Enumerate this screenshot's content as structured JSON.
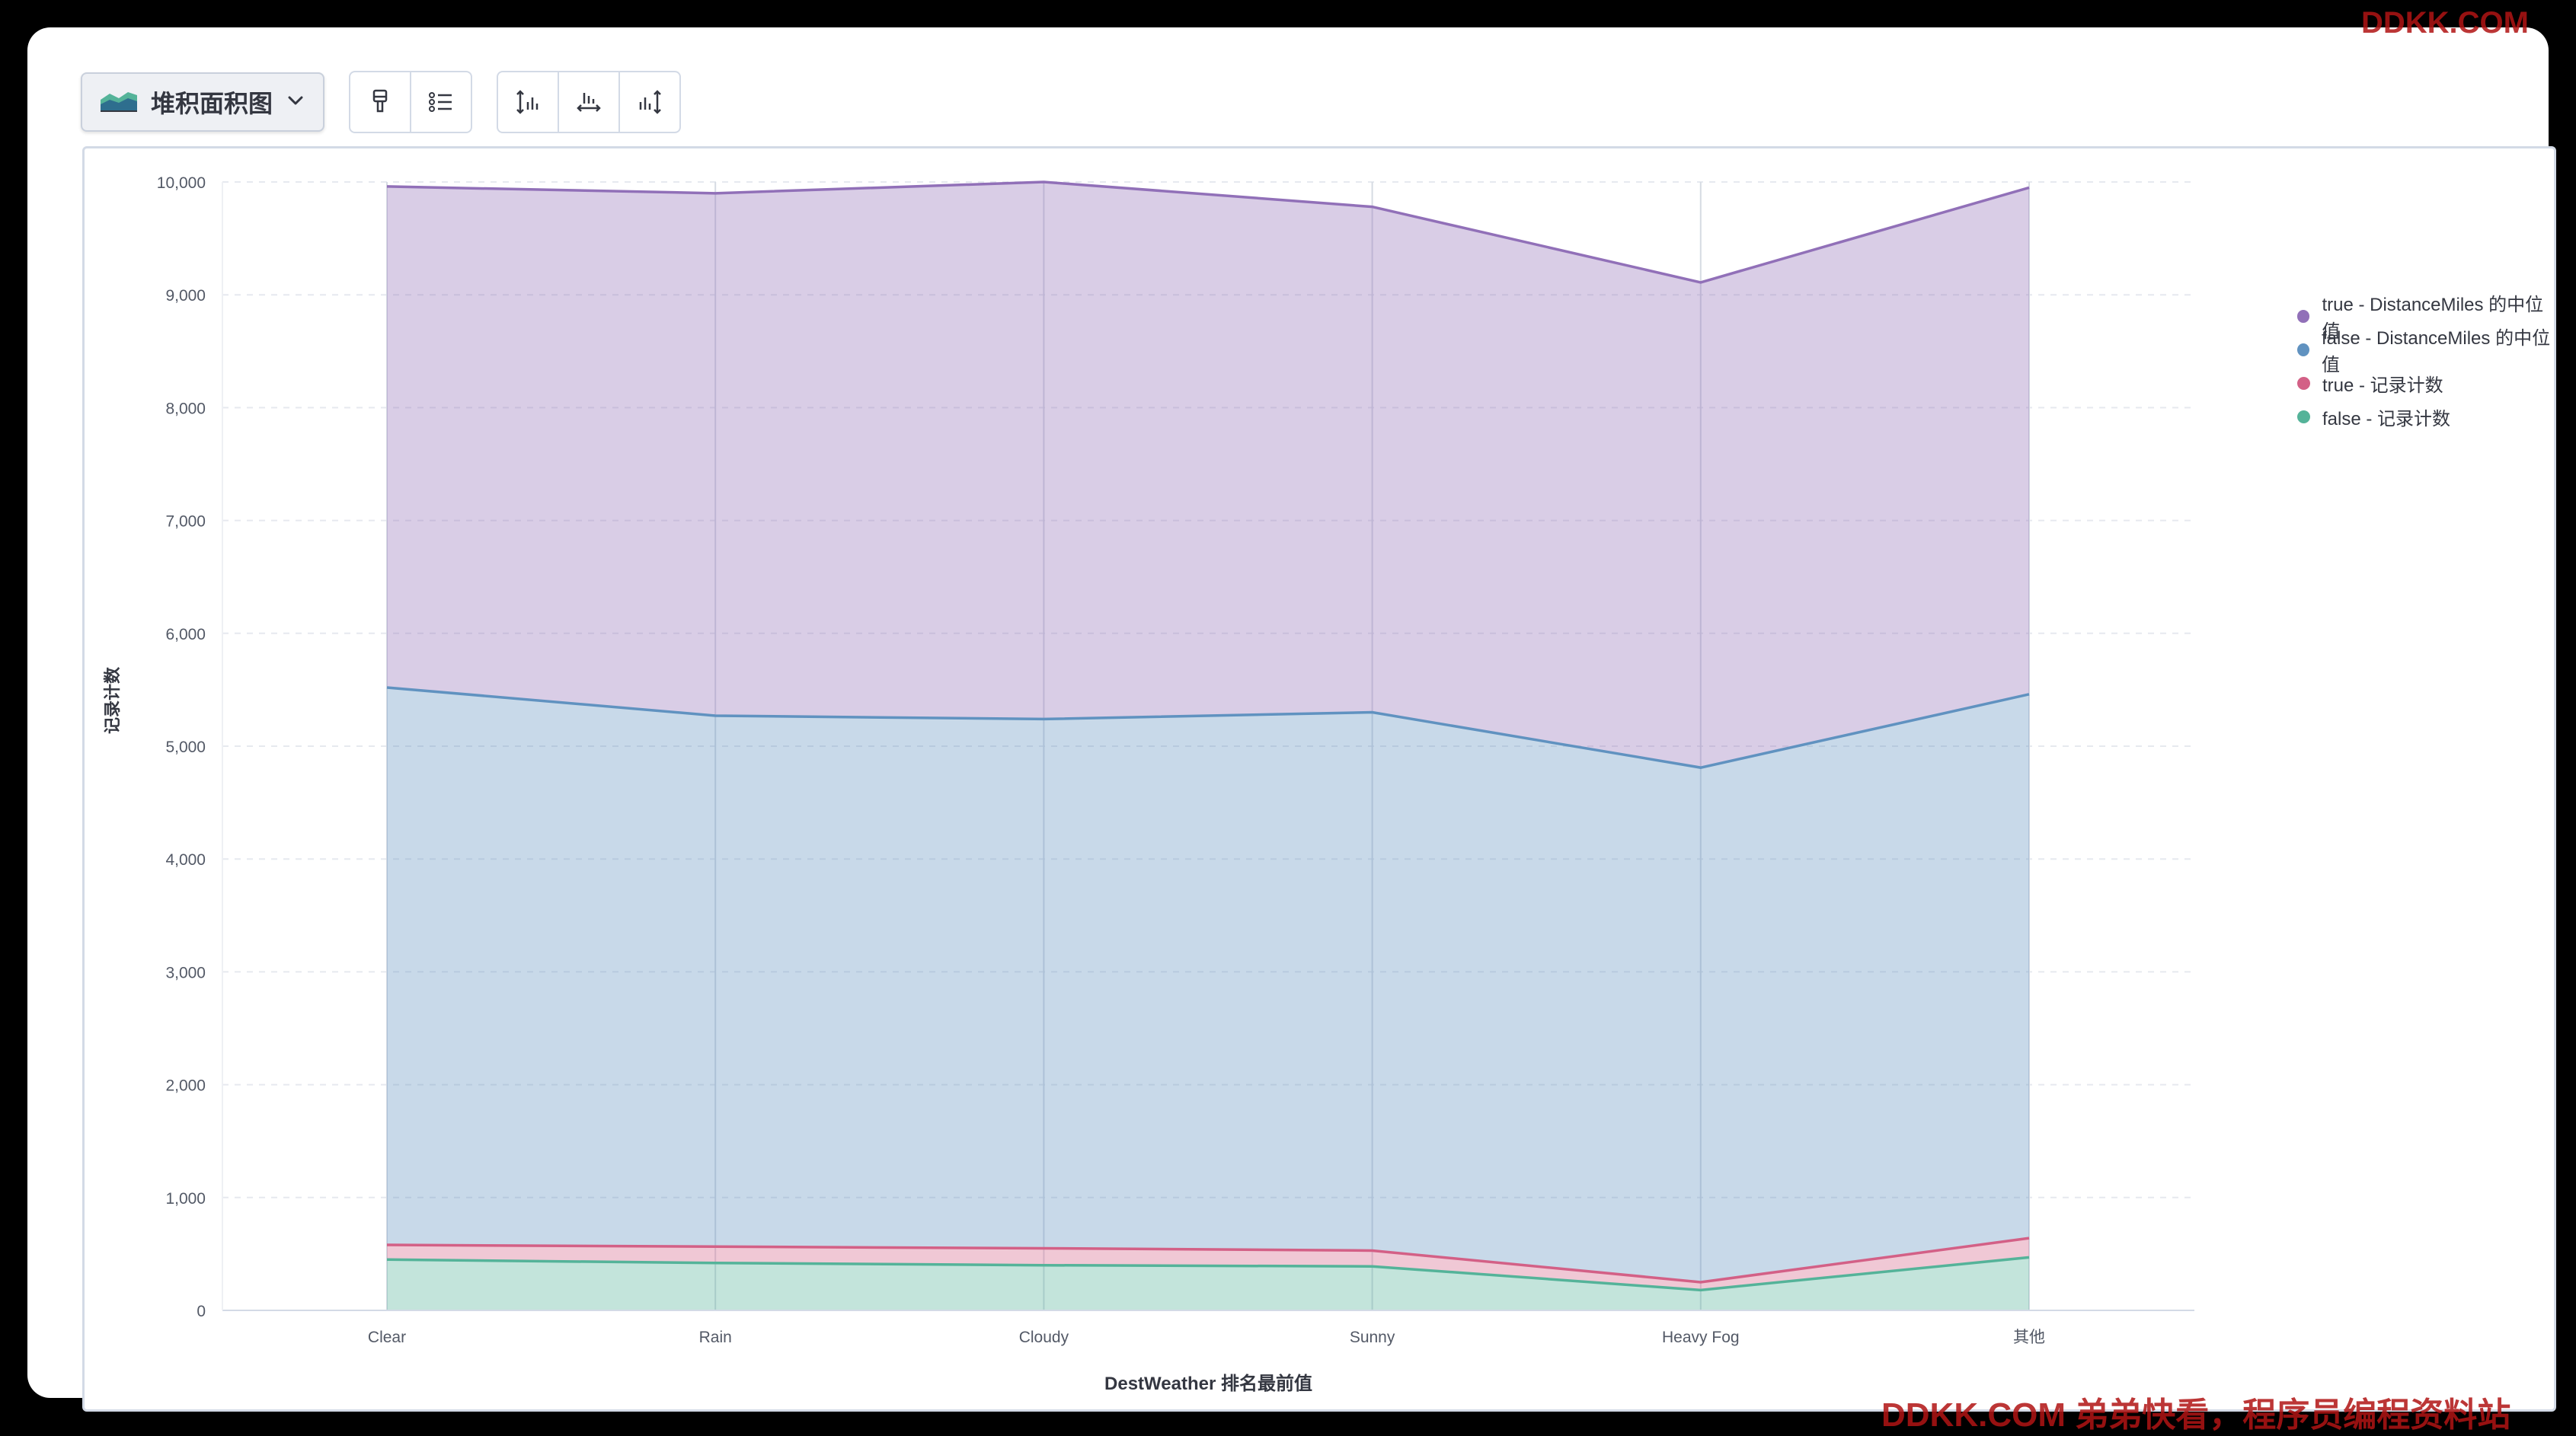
{
  "toolbar": {
    "chart_type_label": "堆积面积图"
  },
  "chart_data": {
    "type": "area",
    "stacked": true,
    "categories": [
      "Clear",
      "Rain",
      "Cloudy",
      "Sunny",
      "Heavy Fog",
      "其他"
    ],
    "xlabel": "DestWeather 排名最前值",
    "ylabel": "记录计数",
    "ylim": [
      0,
      10000
    ],
    "yticks": [
      "0",
      "1,000",
      "2,000",
      "3,000",
      "4,000",
      "5,000",
      "6,000",
      "7,000",
      "8,000",
      "9,000",
      "10,000"
    ],
    "grid": true,
    "legend_position": "top-right",
    "series": [
      {
        "name": "false - 记录计数",
        "color": "#54b399",
        "values": [
          450,
          420,
          400,
          390,
          180,
          470
        ]
      },
      {
        "name": "true - 记录计数",
        "color": "#d36086",
        "values": [
          130,
          145,
          150,
          140,
          70,
          170
        ]
      },
      {
        "name": "false - DistanceMiles 的中位值",
        "color": "#6092c0",
        "values": [
          4940,
          4705,
          4690,
          4770,
          4560,
          4820
        ]
      },
      {
        "name": "true - DistanceMiles 的中位值",
        "color": "#9170b8",
        "values": [
          4440,
          4630,
          4760,
          4480,
          4300,
          4490
        ]
      }
    ]
  },
  "legend": [
    {
      "label": "true - DistanceMiles 的中位值",
      "color": "#9170b8"
    },
    {
      "label": "false - DistanceMiles 的中位值",
      "color": "#6092c0"
    },
    {
      "label": "true - 记录计数",
      "color": "#d36086"
    },
    {
      "label": "false - 记录计数",
      "color": "#54b399"
    }
  ],
  "watermarks": {
    "top": "DDKK.COM",
    "bottom": "DDKK.COM 弟弟快看，程序员编程资料站"
  }
}
